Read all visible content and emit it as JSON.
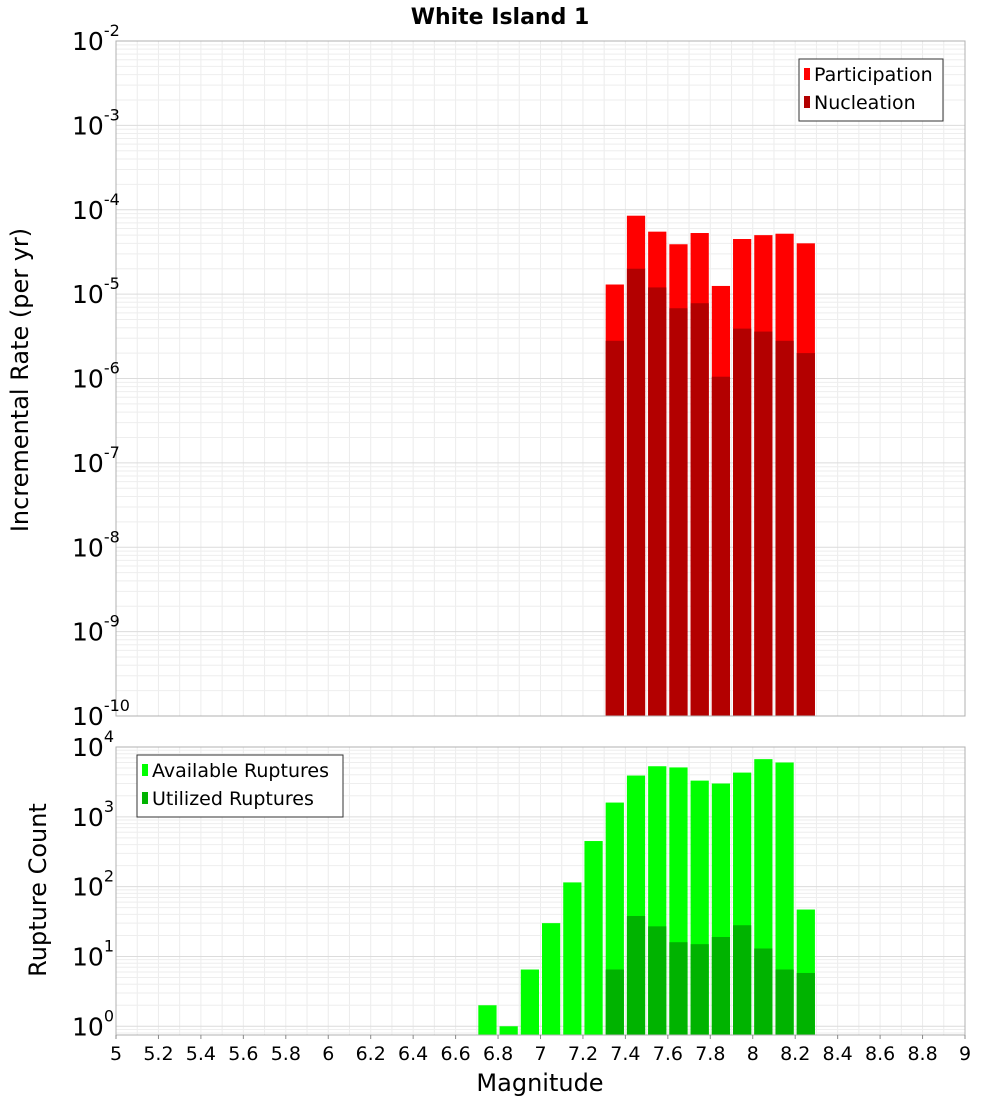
{
  "chart_data": [
    {
      "type": "bar",
      "title": "White Island 1",
      "xlabel": "",
      "ylabel": "Incremental Rate (per yr)",
      "yscale": "log",
      "xlim": [
        5,
        9
      ],
      "ylim": [
        1e-10,
        0.01
      ],
      "grid": true,
      "legend_position": "top-right",
      "y_ticks": [
        {
          "base": "10",
          "exp": "-2"
        },
        {
          "base": "10",
          "exp": "-3"
        },
        {
          "base": "10",
          "exp": "-4"
        },
        {
          "base": "10",
          "exp": "-5"
        },
        {
          "base": "10",
          "exp": "-6"
        },
        {
          "base": "10",
          "exp": "-7"
        },
        {
          "base": "10",
          "exp": "-8"
        },
        {
          "base": "10",
          "exp": "-9"
        },
        {
          "base": "10",
          "exp": "-10"
        }
      ],
      "x": [
        7.35,
        7.45,
        7.55,
        7.65,
        7.75,
        7.85,
        7.95,
        8.05,
        8.15,
        8.25
      ],
      "series": [
        {
          "name": "Participation",
          "color": "#ff0000",
          "values": [
            1.3e-05,
            8.5e-05,
            5.5e-05,
            3.9e-05,
            5.3e-05,
            1.25e-05,
            4.5e-05,
            5e-05,
            5.2e-05,
            4e-05
          ]
        },
        {
          "name": "Nucleation",
          "color": "#b30000",
          "values": [
            2.8e-06,
            2e-05,
            1.2e-05,
            6.8e-06,
            7.8e-06,
            1.05e-06,
            3.9e-06,
            3.6e-06,
            2.8e-06,
            2e-06
          ]
        }
      ]
    },
    {
      "type": "bar",
      "title": "",
      "xlabel": "Magnitude",
      "ylabel": "Rupture Count",
      "yscale": "log",
      "xlim": [
        5,
        9
      ],
      "ylim": [
        0.75,
        10000
      ],
      "grid": true,
      "legend_position": "top-left",
      "x_ticks": [
        "5",
        "5.2",
        "5.4",
        "5.6",
        "5.8",
        "6",
        "6.2",
        "6.4",
        "6.6",
        "6.8",
        "7",
        "7.2",
        "7.4",
        "7.6",
        "7.8",
        "8",
        "8.2",
        "8.4",
        "8.6",
        "8.8",
        "9"
      ],
      "y_ticks": [
        {
          "base": "10",
          "exp": "4"
        },
        {
          "base": "10",
          "exp": "3"
        },
        {
          "base": "10",
          "exp": "2"
        },
        {
          "base": "10",
          "exp": "1"
        },
        {
          "base": "10",
          "exp": "0"
        }
      ],
      "x": [
        6.75,
        6.85,
        6.95,
        7.05,
        7.15,
        7.25,
        7.35,
        7.45,
        7.55,
        7.65,
        7.75,
        7.85,
        7.95,
        8.05,
        8.15,
        8.25
      ],
      "series": [
        {
          "name": "Available Ruptures",
          "color": "#00ff00",
          "values": [
            2,
            1,
            6.5,
            30,
            115,
            450,
            1600,
            3900,
            5300,
            5100,
            3300,
            3000,
            4300,
            6700,
            6000,
            47
          ]
        },
        {
          "name": "Utilized Ruptures",
          "color": "#00b300",
          "values": [
            0,
            0,
            0,
            0,
            0,
            0,
            6.5,
            38,
            27,
            16,
            15,
            19,
            28,
            13,
            6.5,
            5.8
          ]
        }
      ]
    }
  ]
}
